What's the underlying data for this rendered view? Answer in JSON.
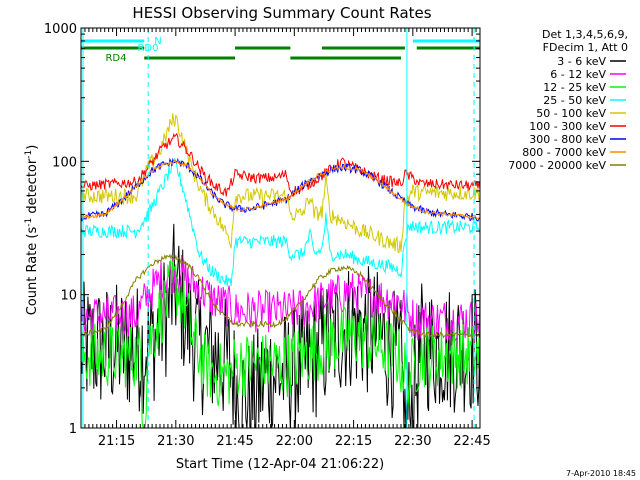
{
  "chart_data": {
    "type": "line",
    "title": "HESSI Observing Summary Count Rates",
    "xlabel": "Start Time (12-Apr-04 21:06:22)",
    "ylabel_main": "Count Rate (s",
    "ylabel_exp1": "-1",
    "ylabel_mid": " detector",
    "ylabel_exp2": "-1",
    "ylabel_end": ")",
    "timestamp": "7-Apr-2010 18:45",
    "x_unit": "minutes",
    "xlim": [
      1266,
      1367
    ],
    "ylim": [
      1,
      1000
    ],
    "yscale": "log",
    "x_ticks": [
      {
        "value": 1275,
        "label": "21:15"
      },
      {
        "value": 1290,
        "label": "21:30"
      },
      {
        "value": 1305,
        "label": "21:45"
      },
      {
        "value": 1320,
        "label": "22:00"
      },
      {
        "value": 1335,
        "label": "22:15"
      },
      {
        "value": 1350,
        "label": "22:30"
      },
      {
        "value": 1365,
        "label": "22:45"
      }
    ],
    "y_ticks": [
      {
        "value": 1,
        "label": "1"
      },
      {
        "value": 10,
        "label": "10"
      },
      {
        "value": 100,
        "label": "100"
      },
      {
        "value": 1000,
        "label": "1000"
      }
    ],
    "legend": {
      "placement": "right",
      "header": [
        "Det 1,3,4,5,6,9,",
        "FDecim 1, Att 0"
      ],
      "entries": [
        {
          "label": "3 - 6 keV",
          "color": "#000000"
        },
        {
          "label": "6 - 12 keV",
          "color": "#ff00ff"
        },
        {
          "label": "12 - 25 keV",
          "color": "#00ff00"
        },
        {
          "label": "25 - 50 keV",
          "color": "#00ffff"
        },
        {
          "label": "50 - 100 keV",
          "color": "#d2c800"
        },
        {
          "label": "100 - 300 keV",
          "color": "#ff0000"
        },
        {
          "label": "300 - 800 keV",
          "color": "#0000ff"
        },
        {
          "label": "800 - 7000 keV",
          "color": "#ff8c00"
        },
        {
          "label": "7000 - 20000 keV",
          "color": "#808000"
        }
      ]
    },
    "flags": {
      "N": {
        "label": "N",
        "color": "#00ffff",
        "segments": [
          [
            1266,
            1282
          ],
          [
            1350,
            1367
          ]
        ]
      },
      "RD0": {
        "label": "RD0",
        "color": "#00ffff",
        "segments": []
      },
      "top_bar": {
        "color": "#008000",
        "segments": [
          [
            1266,
            1282
          ],
          [
            1305,
            1319
          ],
          [
            1327,
            1348
          ],
          [
            1351,
            1367
          ]
        ]
      },
      "RD4": {
        "label": "RD4",
        "color": "#008000",
        "segments": [
          [
            1282,
            1305
          ],
          [
            1319,
            1347
          ]
        ]
      }
    },
    "vlines": [
      {
        "x": 1266.5,
        "style": "solid",
        "color": "#00ffff"
      },
      {
        "x": 1283,
        "style": "dashed",
        "color": "#00ffff"
      },
      {
        "x": 1348.5,
        "style": "solid",
        "color": "#00ffff"
      },
      {
        "x": 1365.5,
        "style": "dashed",
        "color": "#00ffff"
      }
    ],
    "series": [
      {
        "name": "3 - 6 keV",
        "color": "#000000",
        "noise": 0.5,
        "points": [
          [
            1266,
            4
          ],
          [
            1282,
            4
          ],
          [
            1285,
            5
          ],
          [
            1288,
            8
          ],
          [
            1290,
            12
          ],
          [
            1293,
            6
          ],
          [
            1296,
            4
          ],
          [
            1300,
            3.5
          ],
          [
            1304,
            3
          ],
          [
            1305,
            2
          ],
          [
            1309,
            1.5
          ],
          [
            1313,
            2.5
          ],
          [
            1318,
            2.5
          ],
          [
            1323,
            3
          ],
          [
            1327,
            4
          ],
          [
            1331,
            5
          ],
          [
            1334,
            6
          ],
          [
            1337,
            5.5
          ],
          [
            1341,
            5
          ],
          [
            1344,
            4
          ],
          [
            1347,
            3
          ],
          [
            1348,
            1
          ],
          [
            1350,
            1.5
          ],
          [
            1352,
            4
          ],
          [
            1367,
            4
          ]
        ]
      },
      {
        "name": "6 - 12 keV",
        "color": "#ff00ff",
        "noise": 0.16,
        "points": [
          [
            1266,
            7
          ],
          [
            1280,
            7
          ],
          [
            1283,
            10
          ],
          [
            1286,
            13
          ],
          [
            1290,
            15
          ],
          [
            1293,
            13
          ],
          [
            1296,
            11
          ],
          [
            1300,
            9
          ],
          [
            1304,
            8
          ],
          [
            1305,
            7.5
          ],
          [
            1318,
            7.5
          ],
          [
            1323,
            8
          ],
          [
            1327,
            9
          ],
          [
            1331,
            10
          ],
          [
            1334,
            10.5
          ],
          [
            1338,
            10
          ],
          [
            1342,
            9.5
          ],
          [
            1347,
            9
          ],
          [
            1349,
            7
          ],
          [
            1351,
            6.5
          ],
          [
            1367,
            6.5
          ]
        ]
      },
      {
        "name": "12 - 25 keV",
        "color": "#00ff00",
        "noise": 0.25,
        "points": [
          [
            1266,
            3.5
          ],
          [
            1281,
            3.5
          ],
          [
            1282,
            1
          ],
          [
            1283,
            4
          ],
          [
            1286,
            7
          ],
          [
            1289,
            11
          ],
          [
            1290,
            12
          ],
          [
            1292,
            9
          ],
          [
            1294,
            5
          ],
          [
            1297,
            3
          ],
          [
            1300,
            2.5
          ],
          [
            1304,
            2.5
          ],
          [
            1305,
            3
          ],
          [
            1318,
            3
          ],
          [
            1322,
            3.5
          ],
          [
            1326,
            4
          ],
          [
            1330,
            4.5
          ],
          [
            1335,
            5
          ],
          [
            1339,
            4.5
          ],
          [
            1343,
            4
          ],
          [
            1346,
            3.5
          ],
          [
            1347,
            3
          ],
          [
            1349,
            2.5
          ],
          [
            1352,
            3.5
          ],
          [
            1367,
            3.5
          ]
        ]
      },
      {
        "name": "25 - 50 keV",
        "color": "#00ffff",
        "noise": 0.05,
        "points": [
          [
            1266,
            30
          ],
          [
            1280,
            30
          ],
          [
            1283,
            40
          ],
          [
            1286,
            60
          ],
          [
            1289,
            90
          ],
          [
            1290,
            95
          ],
          [
            1292,
            60
          ],
          [
            1294,
            35
          ],
          [
            1296,
            20
          ],
          [
            1299,
            15
          ],
          [
            1302,
            13
          ],
          [
            1304,
            12
          ],
          [
            1305,
            25
          ],
          [
            1318,
            25
          ],
          [
            1319,
            20
          ],
          [
            1322,
            20
          ],
          [
            1324,
            28
          ],
          [
            1325,
            20
          ],
          [
            1327,
            22
          ],
          [
            1328,
            38
          ],
          [
            1329,
            20
          ],
          [
            1333,
            20
          ],
          [
            1337,
            18
          ],
          [
            1341,
            17
          ],
          [
            1345,
            16
          ],
          [
            1347,
            15
          ],
          [
            1348,
            25
          ],
          [
            1349,
            33
          ],
          [
            1352,
            32
          ],
          [
            1367,
            32
          ]
        ]
      },
      {
        "name": "50 - 100 keV",
        "color": "#d2c800",
        "noise": 0.06,
        "points": [
          [
            1266,
            55
          ],
          [
            1280,
            55
          ],
          [
            1283,
            90
          ],
          [
            1286,
            120
          ],
          [
            1289,
            200
          ],
          [
            1290,
            210
          ],
          [
            1292,
            140
          ],
          [
            1294,
            90
          ],
          [
            1297,
            55
          ],
          [
            1300,
            40
          ],
          [
            1304,
            25
          ],
          [
            1305,
            55
          ],
          [
            1318,
            55
          ],
          [
            1319,
            40
          ],
          [
            1322,
            40
          ],
          [
            1324,
            55
          ],
          [
            1325,
            40
          ],
          [
            1327,
            42
          ],
          [
            1328,
            72
          ],
          [
            1329,
            40
          ],
          [
            1333,
            35
          ],
          [
            1337,
            30
          ],
          [
            1341,
            27
          ],
          [
            1345,
            24
          ],
          [
            1347,
            23
          ],
          [
            1348,
            50
          ],
          [
            1350,
            60
          ],
          [
            1352,
            58
          ],
          [
            1367,
            58
          ]
        ]
      },
      {
        "name": "100 - 300 keV",
        "color": "#ff0000",
        "noise": 0.04,
        "points": [
          [
            1266,
            65
          ],
          [
            1280,
            70
          ],
          [
            1283,
            90
          ],
          [
            1287,
            130
          ],
          [
            1290,
            150
          ],
          [
            1293,
            120
          ],
          [
            1297,
            80
          ],
          [
            1300,
            65
          ],
          [
            1303,
            58
          ],
          [
            1305,
            80
          ],
          [
            1310,
            75
          ],
          [
            1315,
            75
          ],
          [
            1318,
            80
          ],
          [
            1319,
            60
          ],
          [
            1322,
            62
          ],
          [
            1326,
            75
          ],
          [
            1330,
            90
          ],
          [
            1332,
            100
          ],
          [
            1333,
            95
          ],
          [
            1337,
            85
          ],
          [
            1341,
            75
          ],
          [
            1345,
            70
          ],
          [
            1347,
            68
          ],
          [
            1348,
            80
          ],
          [
            1350,
            75
          ],
          [
            1352,
            68
          ],
          [
            1367,
            65
          ]
        ]
      },
      {
        "name": "300 - 800 keV",
        "color": "#0000ff",
        "noise": 0.03,
        "points": [
          [
            1266,
            38
          ],
          [
            1272,
            40
          ],
          [
            1276,
            50
          ],
          [
            1280,
            65
          ],
          [
            1284,
            85
          ],
          [
            1287,
            95
          ],
          [
            1290,
            100
          ],
          [
            1293,
            92
          ],
          [
            1296,
            75
          ],
          [
            1299,
            58
          ],
          [
            1302,
            48
          ],
          [
            1305,
            44
          ],
          [
            1309,
            44
          ],
          [
            1314,
            48
          ],
          [
            1318,
            52
          ],
          [
            1322,
            65
          ],
          [
            1326,
            78
          ],
          [
            1330,
            88
          ],
          [
            1333,
            90
          ],
          [
            1337,
            85
          ],
          [
            1341,
            72
          ],
          [
            1345,
            58
          ],
          [
            1349,
            47
          ],
          [
            1353,
            42
          ],
          [
            1358,
            40
          ],
          [
            1367,
            38
          ]
        ]
      },
      {
        "name": "800 - 7000 keV",
        "color": "#ff8c00",
        "noise": 0.015,
        "points": [
          [
            1266,
            38
          ],
          [
            1272,
            40
          ],
          [
            1276,
            50
          ],
          [
            1280,
            65
          ],
          [
            1284,
            85
          ],
          [
            1287,
            95
          ],
          [
            1290,
            100
          ],
          [
            1293,
            92
          ],
          [
            1296,
            75
          ],
          [
            1299,
            58
          ],
          [
            1302,
            48
          ],
          [
            1305,
            44
          ],
          [
            1309,
            44
          ],
          [
            1314,
            48
          ],
          [
            1318,
            52
          ],
          [
            1322,
            65
          ],
          [
            1326,
            78
          ],
          [
            1330,
            88
          ],
          [
            1333,
            90
          ],
          [
            1337,
            85
          ],
          [
            1341,
            72
          ],
          [
            1345,
            58
          ],
          [
            1349,
            47
          ],
          [
            1353,
            42
          ],
          [
            1358,
            40
          ],
          [
            1367,
            38
          ]
        ]
      },
      {
        "name": "7000 - 20000 keV",
        "color": "#808000",
        "noise": 0.02,
        "points": [
          [
            1266,
            5
          ],
          [
            1272,
            5.5
          ],
          [
            1276,
            8
          ],
          [
            1280,
            13
          ],
          [
            1284,
            17
          ],
          [
            1287,
            19
          ],
          [
            1290,
            19
          ],
          [
            1293,
            17
          ],
          [
            1296,
            13
          ],
          [
            1299,
            9
          ],
          [
            1302,
            7
          ],
          [
            1305,
            6
          ],
          [
            1310,
            6
          ],
          [
            1315,
            6
          ],
          [
            1318,
            6.5
          ],
          [
            1322,
            9
          ],
          [
            1326,
            13
          ],
          [
            1330,
            15.5
          ],
          [
            1333,
            16
          ],
          [
            1337,
            14
          ],
          [
            1341,
            10
          ],
          [
            1345,
            7.5
          ],
          [
            1349,
            5.5
          ],
          [
            1353,
            5
          ],
          [
            1367,
            5
          ]
        ]
      }
    ]
  }
}
